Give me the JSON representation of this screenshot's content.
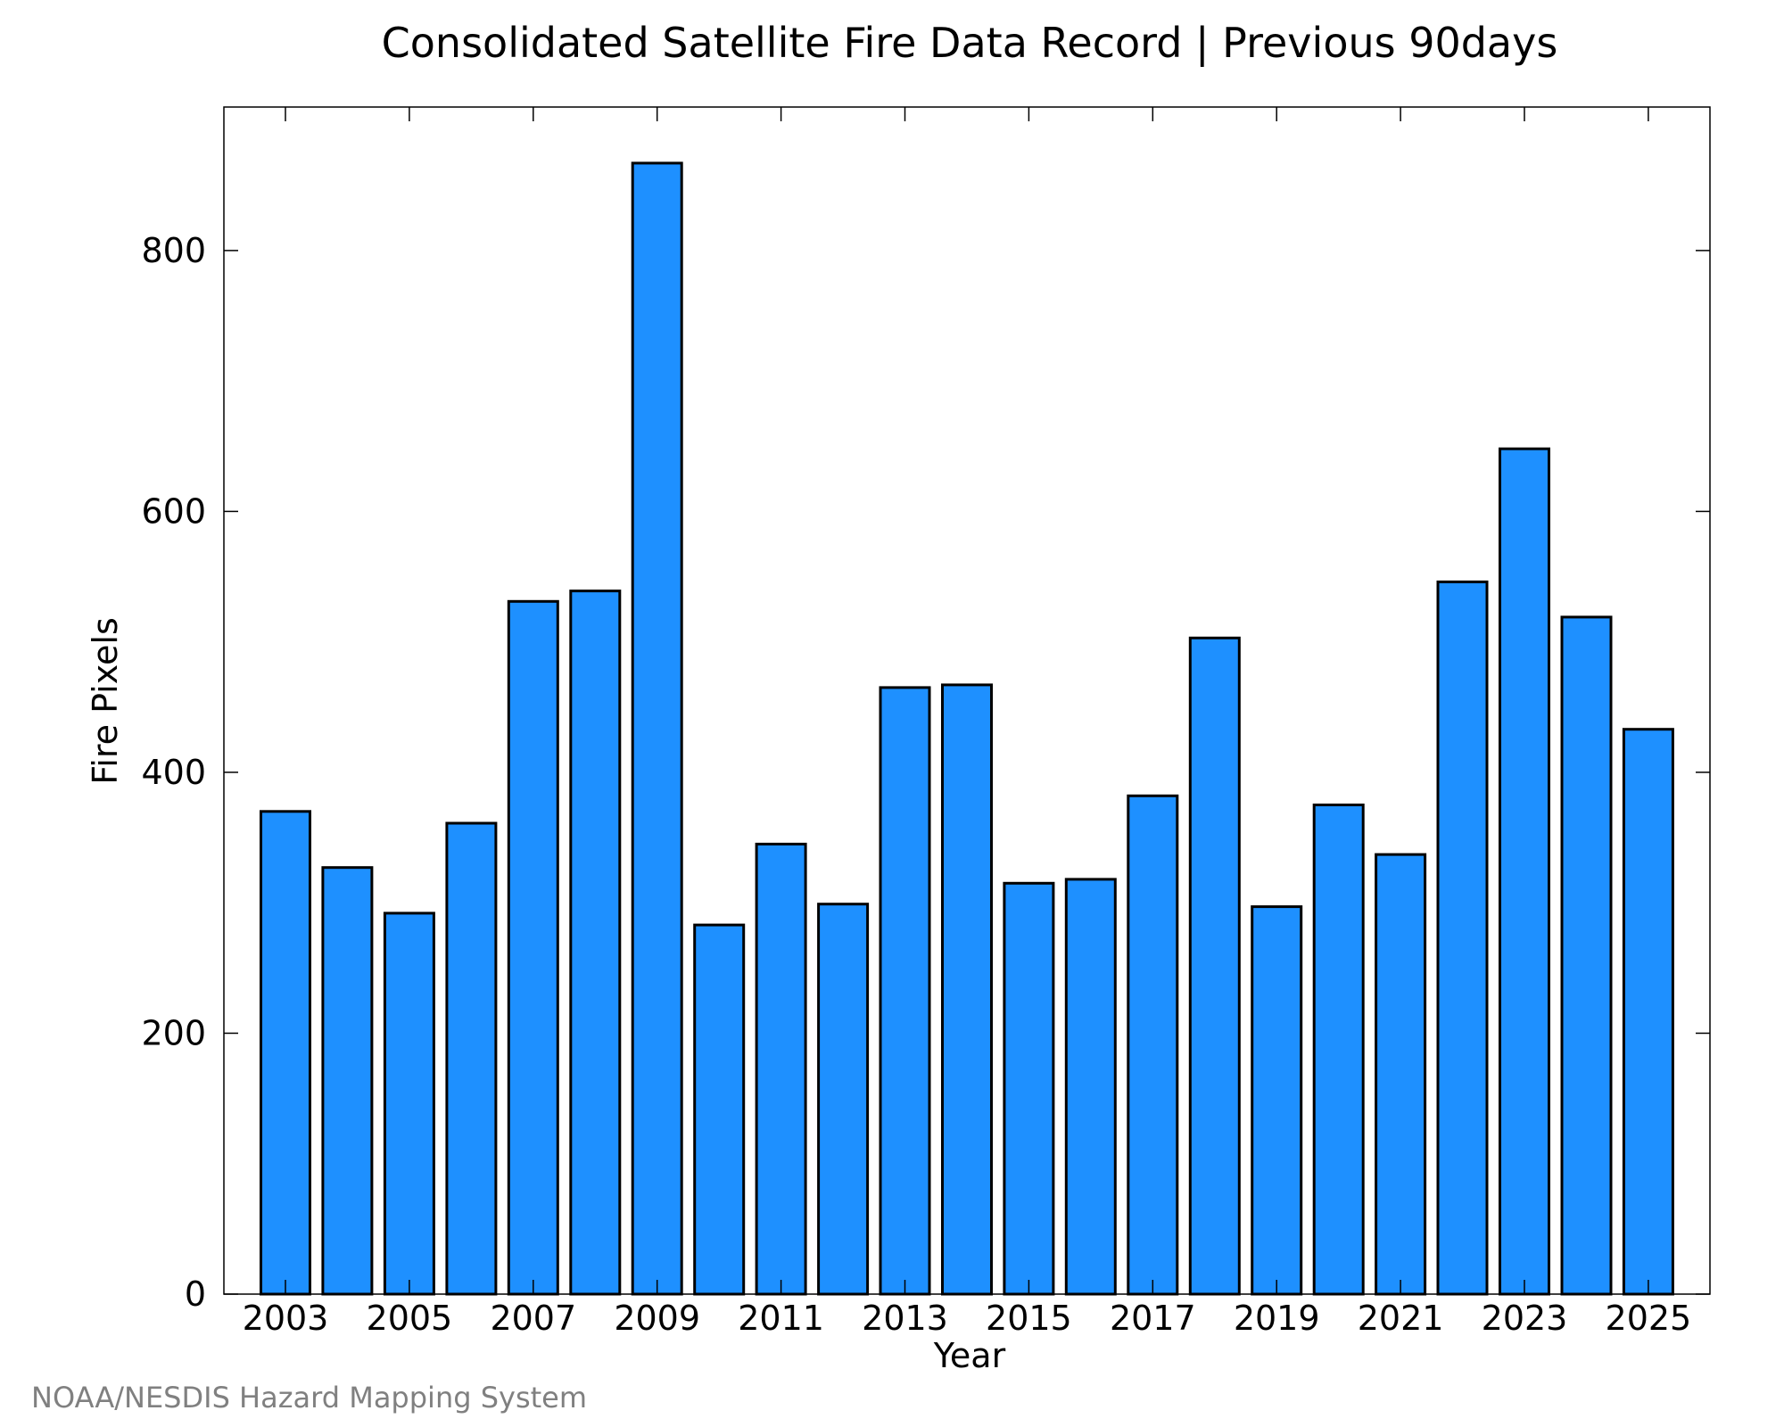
{
  "chart_data": {
    "type": "bar",
    "title": "Consolidated Satellite Fire Data Record | Previous 90days",
    "xlabel": "Year",
    "ylabel": "Fire Pixels",
    "categories": [
      "2003",
      "2004",
      "2005",
      "2006",
      "2007",
      "2008",
      "2009",
      "2010",
      "2011",
      "2012",
      "2013",
      "2014",
      "2015",
      "2016",
      "2017",
      "2018",
      "2019",
      "2020",
      "2021",
      "2022",
      "2023",
      "2024",
      "2025"
    ],
    "values": [
      370,
      327,
      292,
      361,
      531,
      539,
      867,
      283,
      345,
      299,
      465,
      467,
      315,
      318,
      382,
      503,
      297,
      375,
      337,
      546,
      648,
      519,
      433
    ],
    "ylim": [
      0,
      910
    ],
    "yticks": [
      0,
      200,
      400,
      600,
      800
    ],
    "xtick_labels": [
      "2003",
      "2005",
      "2007",
      "2009",
      "2011",
      "2013",
      "2015",
      "2017",
      "2019",
      "2021",
      "2023",
      "2025"
    ],
    "bar_color": "#1e90ff",
    "grid": false,
    "credit": "NOAA/NESDIS Hazard Mapping System"
  }
}
